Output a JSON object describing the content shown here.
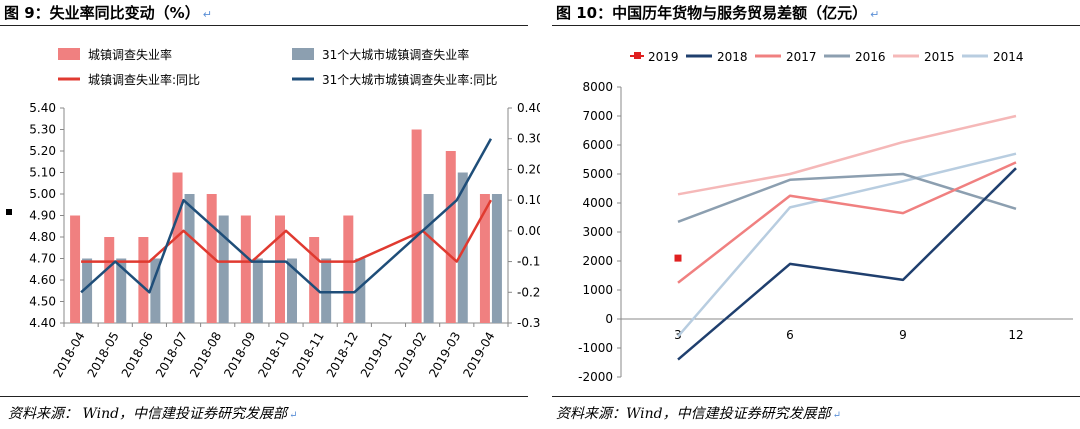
{
  "figure9": {
    "title": "图 9：失业率同比变动（%）",
    "source": "资料来源： Wind，中信建投证券研究发展部"
  },
  "figure10": {
    "title": "图 10：中国历年货物与服务贸易差额（亿元）",
    "source": "资料来源：Wind，中信建投证券研究发展部"
  },
  "chart_data": [
    {
      "type": "bar",
      "categories": [
        "2018-04",
        "2018-05",
        "2018-06",
        "2018-07",
        "2018-08",
        "2018-09",
        "2018-10",
        "2018-11",
        "2018-12",
        "2019-01",
        "2019-02",
        "2019-03",
        "2019-04"
      ],
      "series": [
        {
          "name": "城镇调查失业率",
          "type": "bar",
          "axis": "left",
          "color": "#f08080",
          "values": [
            4.9,
            4.8,
            4.8,
            5.1,
            5.0,
            4.9,
            4.9,
            4.8,
            4.9,
            null,
            5.3,
            5.2,
            5.0
          ]
        },
        {
          "name": "31个大城市城镇调查失业率",
          "type": "bar",
          "axis": "left",
          "color": "#8c9fb0",
          "values": [
            4.7,
            4.7,
            4.7,
            5.0,
            4.9,
            4.7,
            4.7,
            4.7,
            4.7,
            null,
            5.0,
            5.1,
            5.0
          ]
        },
        {
          "name": "城镇调查失业率:同比",
          "type": "line",
          "axis": "right",
          "color": "#e03a30",
          "values": [
            -0.1,
            -0.1,
            -0.1,
            0.0,
            -0.1,
            -0.1,
            0.0,
            -0.1,
            -0.1,
            null,
            0.0,
            -0.1,
            0.1
          ]
        },
        {
          "name": "31个大城市城镇调查失业率:同比",
          "type": "line",
          "axis": "right",
          "color": "#1f4e79",
          "values": [
            -0.2,
            -0.1,
            -0.2,
            0.1,
            0.0,
            -0.1,
            -0.1,
            -0.2,
            -0.2,
            null,
            0.0,
            0.1,
            0.3
          ]
        }
      ],
      "ylim_left": [
        4.4,
        5.4
      ],
      "yticks_left": [
        "4.40",
        "4.50",
        "4.60",
        "4.70",
        "4.80",
        "4.90",
        "5.00",
        "5.10",
        "5.20",
        "5.30",
        "5.40"
      ],
      "ylim_right": [
        -0.3,
        0.4
      ],
      "yticks_right": [
        "-0.30",
        "-0.20",
        "-0.10",
        "0.00",
        "0.10",
        "0.20",
        "0.30",
        "0.40"
      ],
      "legend": "top",
      "grid": false
    },
    {
      "type": "line",
      "x": [
        3,
        6,
        9,
        12
      ],
      "xticks": [
        "3",
        "6",
        "9",
        "12"
      ],
      "series": [
        {
          "name": "2019",
          "color": "#e02020",
          "marker": "square",
          "values": [
            2100,
            null,
            null,
            null
          ]
        },
        {
          "name": "2018",
          "color": "#1f3f6e",
          "values": [
            -1400,
            1900,
            1350,
            5200
          ]
        },
        {
          "name": "2017",
          "color": "#f08080",
          "values": [
            1250,
            4250,
            3650,
            5400
          ]
        },
        {
          "name": "2016",
          "color": "#8c9fb0",
          "values": [
            3350,
            4800,
            5000,
            3800
          ]
        },
        {
          "name": "2015",
          "color": "#f5b8b8",
          "values": [
            4300,
            5000,
            6100,
            7000
          ]
        },
        {
          "name": "2014",
          "color": "#b8cde0",
          "values": [
            -600,
            3850,
            4750,
            5700
          ]
        }
      ],
      "ylim": [
        -2000,
        8000
      ],
      "yticks": [
        "-2000",
        "-1000",
        "0",
        "1000",
        "2000",
        "3000",
        "4000",
        "5000",
        "6000",
        "7000",
        "8000"
      ],
      "legend": "top",
      "grid": false
    }
  ]
}
